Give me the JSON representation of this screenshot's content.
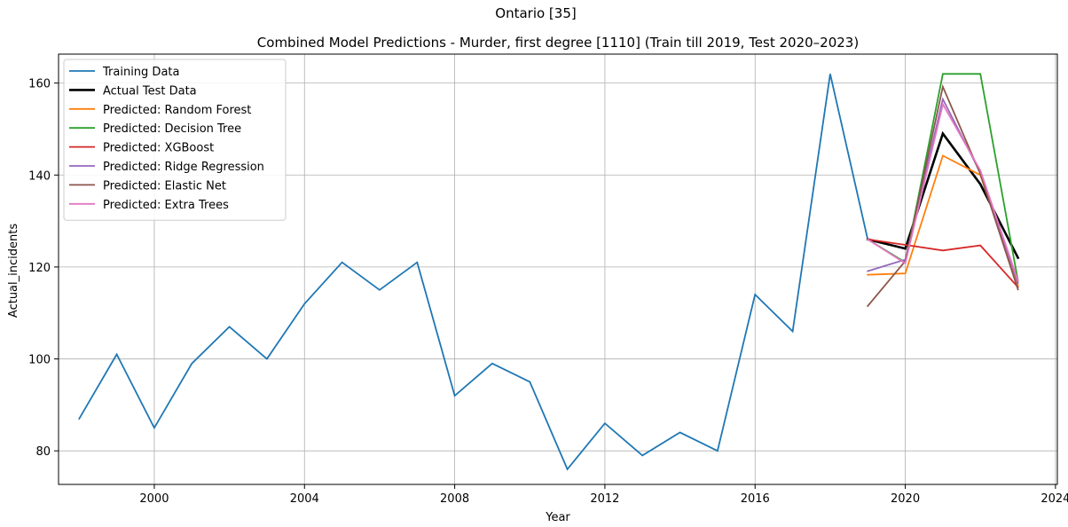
{
  "suptitle": "Ontario [35]",
  "chart_data": {
    "type": "line",
    "title": "Combined Model Predictions - Murder, first degree [1110] (Train till 2019, Test 2020–2023)",
    "xlabel": "Year",
    "ylabel": "Actual_incidents",
    "xlim": [
      1997.45,
      2024.05
    ],
    "ylim": [
      72.7,
      166.3
    ],
    "xticks": [
      2000,
      2004,
      2008,
      2012,
      2016,
      2020,
      2024
    ],
    "yticks": [
      80,
      100,
      120,
      140,
      160
    ],
    "grid": true,
    "legend_position": "upper-left",
    "series": [
      {
        "name": "Training Data",
        "color": "#1f77b4",
        "width": 1.8,
        "x": [
          1998,
          1999,
          2000,
          2001,
          2002,
          2003,
          2004,
          2005,
          2006,
          2007,
          2008,
          2009,
          2010,
          2011,
          2012,
          2013,
          2014,
          2015,
          2016,
          2017,
          2018,
          2019
        ],
        "y": [
          87,
          101,
          85,
          99,
          107,
          100,
          112,
          121,
          115,
          121,
          92,
          99,
          95,
          76,
          86,
          79,
          84,
          80,
          114,
          106,
          162,
          126
        ]
      },
      {
        "name": "Actual Test Data",
        "color": "#000000",
        "width": 2.6,
        "x": [
          2019,
          2020,
          2021,
          2022,
          2023
        ],
        "y": [
          126,
          124,
          149,
          138,
          122
        ]
      },
      {
        "name": "Predicted: Random Forest",
        "color": "#ff7f0e",
        "width": 1.8,
        "x": [
          2019,
          2020,
          2021,
          2022,
          2023
        ],
        "y": [
          118.3,
          118.6,
          144.2,
          140.0,
          116.0
        ]
      },
      {
        "name": "Predicted: Decision Tree",
        "color": "#2ca02c",
        "width": 1.8,
        "x": [
          2019,
          2020,
          2021,
          2022,
          2023
        ],
        "y": [
          126,
          121,
          162,
          162,
          117
        ]
      },
      {
        "name": "Predicted: XGBoost",
        "color": "#d62728",
        "width": 1.8,
        "x": [
          2019,
          2020,
          2021,
          2022,
          2023
        ],
        "y": [
          126.0,
          124.8,
          123.6,
          124.7,
          115.6
        ]
      },
      {
        "name": "Predicted: Ridge Regression",
        "color": "#9467bd",
        "width": 1.8,
        "x": [
          2019,
          2020,
          2021,
          2022,
          2023
        ],
        "y": [
          119.1,
          121.6,
          156.5,
          140.5,
          116.5
        ]
      },
      {
        "name": "Predicted: Elastic Net",
        "color": "#8c564b",
        "width": 1.8,
        "x": [
          2019,
          2020,
          2021,
          2022,
          2023
        ],
        "y": [
          111.5,
          121.3,
          159.2,
          140.2,
          115.1
        ]
      },
      {
        "name": "Predicted: Extra Trees",
        "color": "#e377c2",
        "width": 1.8,
        "x": [
          2019,
          2020,
          2021,
          2022,
          2023
        ],
        "y": [
          126.0,
          120.8,
          155.4,
          141.0,
          117.0
        ]
      }
    ]
  }
}
